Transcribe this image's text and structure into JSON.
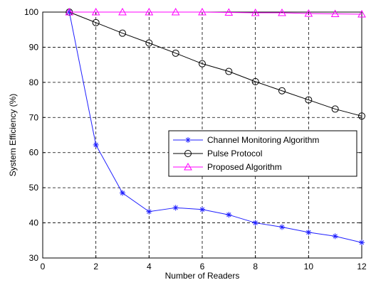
{
  "chart_data": {
    "type": "line",
    "xlabel": "Number of Readers",
    "ylabel": "System Efficiency (%)",
    "xlim": [
      0,
      12
    ],
    "ylim": [
      30,
      100
    ],
    "x_ticks": [
      0,
      2,
      4,
      6,
      8,
      10,
      12
    ],
    "y_ticks": [
      30,
      40,
      50,
      60,
      70,
      80,
      90,
      100
    ],
    "grid": true,
    "grid_style": "dashed",
    "legend_position": "center-right",
    "x": [
      1,
      2,
      3,
      4,
      5,
      6,
      7,
      8,
      9,
      10,
      11,
      12
    ],
    "series": [
      {
        "name": "Channel Monitoring Algorithm",
        "color": "#1f1fff",
        "marker": "asterisk",
        "values": [
          100,
          62.2,
          48.5,
          43.2,
          44.3,
          43.8,
          42.3,
          40.0,
          38.8,
          37.3,
          36.2,
          34.4
        ]
      },
      {
        "name": "Pulse Protocol",
        "color": "#000000",
        "marker": "circle",
        "values": [
          100,
          97.0,
          94.0,
          91.2,
          88.3,
          85.3,
          83.1,
          80.2,
          77.6,
          75.0,
          72.4,
          70.4
        ]
      },
      {
        "name": "Proposed Algorithm",
        "color": "#ff00ff",
        "marker": "triangle",
        "values": [
          100,
          100,
          100,
          100,
          100,
          100,
          99.9,
          99.8,
          99.8,
          99.6,
          99.5,
          99.4
        ]
      }
    ]
  }
}
